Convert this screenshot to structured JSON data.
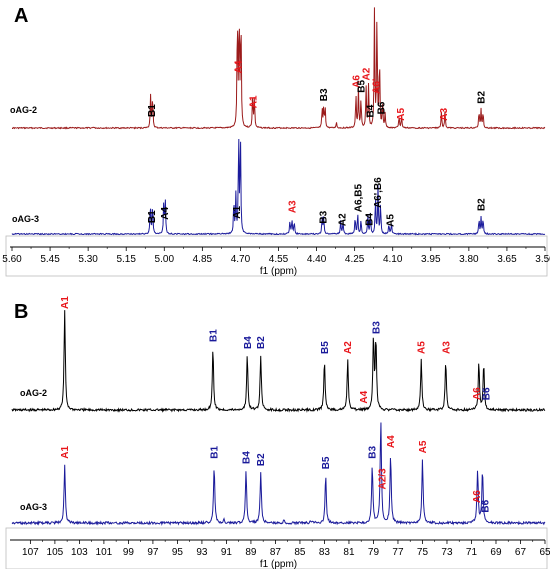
{
  "colors": {
    "black": "#000000",
    "red": "#e8161b",
    "blue": "#1a1a9a",
    "darkred": "#9b1b1b",
    "navy": "#1c1c9c",
    "axis": "#000000",
    "axisBox": "#bdbdbd"
  },
  "chart_data": [
    {
      "type": "line",
      "panel": "A",
      "xlabel": "f1 (ppm)",
      "x_reversed": true,
      "xlim": [
        5.6,
        3.5
      ],
      "x_ticks": [
        "5.60",
        "5.45",
        "5.30",
        "5.15",
        "5.00",
        "4.85",
        "4.70",
        "4.55",
        "4.40",
        "4.25",
        "4.10",
        "3.95",
        "3.80",
        "3.65",
        "3.50"
      ],
      "series": [
        {
          "name": "oAG-2",
          "color": "darkred",
          "peaks": [
            {
              "x": 5.28,
              "h": 0.01
            },
            {
              "x": 5.054,
              "h": 0.27
            },
            {
              "x": 5.046,
              "h": 0.27
            },
            {
              "x": 4.712,
              "h": 0.95
            },
            {
              "x": 4.705,
              "h": 0.95
            },
            {
              "x": 4.698,
              "h": 0.95
            },
            {
              "x": 4.652,
              "h": 0.27
            },
            {
              "x": 4.645,
              "h": 0.27
            },
            {
              "x": 4.378,
              "h": 0.16
            },
            {
              "x": 4.372,
              "h": 0.17
            },
            {
              "x": 4.366,
              "h": 0.16
            },
            {
              "x": 4.322,
              "h": 0.05
            },
            {
              "x": 4.245,
              "h": 0.28
            },
            {
              "x": 4.235,
              "h": 0.32
            },
            {
              "x": 4.225,
              "h": 0.24
            },
            {
              "x": 4.205,
              "h": 0.34
            },
            {
              "x": 4.195,
              "h": 0.36
            },
            {
              "x": 4.172,
              "h": 0.95
            },
            {
              "x": 4.162,
              "h": 0.95
            },
            {
              "x": 4.152,
              "h": 0.6
            },
            {
              "x": 4.14,
              "h": 0.2
            },
            {
              "x": 4.13,
              "h": 0.12
            },
            {
              "x": 4.075,
              "h": 0.1
            },
            {
              "x": 4.065,
              "h": 0.1
            },
            {
              "x": 3.908,
              "h": 0.14
            },
            {
              "x": 3.894,
              "h": 0.14
            },
            {
              "x": 3.76,
              "h": 0.14
            },
            {
              "x": 3.752,
              "h": 0.15
            },
            {
              "x": 3.744,
              "h": 0.14
            }
          ],
          "labels": [
            {
              "text": "B1",
              "x": 5.05,
              "color": "black"
            },
            {
              "text": "A4",
              "x": 4.71,
              "color": "red"
            },
            {
              "text": "A1",
              "x": 4.65,
              "color": "red"
            },
            {
              "text": "B3",
              "x": 4.372,
              "color": "black"
            },
            {
              "text": "A6",
              "x": 4.245,
              "color": "red"
            },
            {
              "text": "B5",
              "x": 4.225,
              "color": "black"
            },
            {
              "text": "A2",
              "x": 4.205,
              "color": "red"
            },
            {
              "text": "B4",
              "x": 4.19,
              "color": "black"
            },
            {
              "text": "A6'",
              "x": 4.165,
              "color": "red"
            },
            {
              "text": "B6",
              "x": 4.147,
              "color": "black"
            },
            {
              "text": "A5",
              "x": 4.07,
              "color": "red"
            },
            {
              "text": "A3",
              "x": 3.9,
              "color": "red"
            },
            {
              "text": "B2",
              "x": 3.752,
              "color": "black"
            }
          ]
        },
        {
          "name": "oAG-3",
          "color": "navy",
          "peaks": [
            {
              "x": 5.055,
              "h": 0.3
            },
            {
              "x": 5.046,
              "h": 0.3
            },
            {
              "x": 5.002,
              "h": 0.32
            },
            {
              "x": 4.996,
              "h": 0.32
            },
            {
              "x": 4.726,
              "h": 0.33
            },
            {
              "x": 4.718,
              "h": 0.36
            },
            {
              "x": 4.707,
              "h": 0.95
            },
            {
              "x": 4.7,
              "h": 0.95
            },
            {
              "x": 4.505,
              "h": 0.12
            },
            {
              "x": 4.497,
              "h": 0.14
            },
            {
              "x": 4.488,
              "h": 0.12
            },
            {
              "x": 4.378,
              "h": 0.17
            },
            {
              "x": 4.372,
              "h": 0.17
            },
            {
              "x": 4.305,
              "h": 0.12
            },
            {
              "x": 4.296,
              "h": 0.12
            },
            {
              "x": 4.248,
              "h": 0.17
            },
            {
              "x": 4.238,
              "h": 0.2
            },
            {
              "x": 4.225,
              "h": 0.14
            },
            {
              "x": 4.198,
              "h": 0.18
            },
            {
              "x": 4.188,
              "h": 0.2
            },
            {
              "x": 4.168,
              "h": 0.35
            },
            {
              "x": 4.158,
              "h": 0.45
            },
            {
              "x": 4.148,
              "h": 0.3
            },
            {
              "x": 4.115,
              "h": 0.1
            },
            {
              "x": 4.105,
              "h": 0.1
            },
            {
              "x": 3.76,
              "h": 0.15
            },
            {
              "x": 3.752,
              "h": 0.16
            },
            {
              "x": 3.744,
              "h": 0.15
            }
          ],
          "labels": [
            {
              "text": "B1",
              "x": 5.05,
              "color": "black"
            },
            {
              "text": "A4",
              "x": 4.999,
              "color": "black"
            },
            {
              "text": "A1",
              "x": 4.715,
              "color": "black"
            },
            {
              "text": "A3",
              "x": 4.497,
              "color": "red"
            },
            {
              "text": "B3",
              "x": 4.375,
              "color": "black"
            },
            {
              "text": "A2",
              "x": 4.3,
              "color": "black"
            },
            {
              "text": "A6,B5",
              "x": 4.237,
              "color": "black"
            },
            {
              "text": "B4",
              "x": 4.193,
              "color": "black"
            },
            {
              "text": "A6',B6",
              "x": 4.16,
              "color": "black"
            },
            {
              "text": "A5",
              "x": 4.11,
              "color": "black"
            },
            {
              "text": "B2",
              "x": 3.752,
              "color": "black"
            }
          ]
        }
      ],
      "panel_label": "A"
    },
    {
      "type": "line",
      "panel": "B",
      "xlabel": "f1 (ppm)",
      "x_reversed": true,
      "xlim": [
        108.5,
        65
      ],
      "x_ticks": [
        "107",
        "105",
        "103",
        "101",
        "99",
        "97",
        "95",
        "93",
        "91",
        "89",
        "87",
        "85",
        "83",
        "81",
        "79",
        "77",
        "75",
        "73",
        "71",
        "69",
        "67",
        "65"
      ],
      "series": [
        {
          "name": "oAG-2",
          "color": "black",
          "peaks": [
            {
              "x": 104.2,
              "h": 1.0
            },
            {
              "x": 92.1,
              "h": 0.62
            },
            {
              "x": 89.3,
              "h": 0.55
            },
            {
              "x": 88.2,
              "h": 0.55
            },
            {
              "x": 83.0,
              "h": 0.5
            },
            {
              "x": 81.1,
              "h": 0.5
            },
            {
              "x": 79.0,
              "h": 0.72
            },
            {
              "x": 78.8,
              "h": 0.7
            },
            {
              "x": 75.1,
              "h": 0.5
            },
            {
              "x": 73.1,
              "h": 0.5
            },
            {
              "x": 70.4,
              "h": 0.48
            },
            {
              "x": 70.0,
              "h": 0.46
            }
          ],
          "labels": [
            {
              "text": "A1",
              "x": 104.2,
              "color": "red"
            },
            {
              "text": "B1",
              "x": 92.1,
              "color": "blue"
            },
            {
              "text": "B4",
              "x": 89.3,
              "color": "blue"
            },
            {
              "text": "B2",
              "x": 88.2,
              "color": "blue"
            },
            {
              "text": "B5",
              "x": 83.0,
              "color": "blue"
            },
            {
              "text": "A2",
              "x": 81.1,
              "color": "red"
            },
            {
              "text": "A4",
              "x": 79.8,
              "color": "red"
            },
            {
              "text": "B3",
              "x": 78.8,
              "color": "blue"
            },
            {
              "text": "A5",
              "x": 75.1,
              "color": "red"
            },
            {
              "text": "A3",
              "x": 73.1,
              "color": "red"
            },
            {
              "text": "A6",
              "x": 70.6,
              "color": "red"
            },
            {
              "text": "B6",
              "x": 69.8,
              "color": "blue"
            }
          ]
        },
        {
          "name": "oAG-3",
          "color": "blue",
          "peaks": [
            {
              "x": 104.2,
              "h": 0.55
            },
            {
              "x": 92.0,
              "h": 0.55
            },
            {
              "x": 89.4,
              "h": 0.5
            },
            {
              "x": 88.2,
              "h": 0.48
            },
            {
              "x": 82.9,
              "h": 0.45
            },
            {
              "x": 79.1,
              "h": 0.55
            },
            {
              "x": 78.4,
              "h": 0.98
            },
            {
              "x": 77.6,
              "h": 0.65
            },
            {
              "x": 75.0,
              "h": 0.6
            },
            {
              "x": 70.5,
              "h": 0.5
            },
            {
              "x": 70.1,
              "h": 0.5
            },
            {
              "x": 91.2,
              "h": 0.03
            },
            {
              "x": 86.3,
              "h": 0.02
            },
            {
              "x": 84.1,
              "h": 0.02
            }
          ],
          "labels": [
            {
              "text": "A1",
              "x": 104.2,
              "color": "red"
            },
            {
              "text": "B1",
              "x": 92.0,
              "color": "blue"
            },
            {
              "text": "B4",
              "x": 89.4,
              "color": "blue"
            },
            {
              "text": "B2",
              "x": 88.2,
              "color": "blue"
            },
            {
              "text": "B5",
              "x": 82.9,
              "color": "blue"
            },
            {
              "text": "B3",
              "x": 79.1,
              "color": "blue"
            },
            {
              "text": "A2/3",
              "x": 78.3,
              "color": "red"
            },
            {
              "text": "A4",
              "x": 77.6,
              "color": "red"
            },
            {
              "text": "A5",
              "x": 75.0,
              "color": "red"
            },
            {
              "text": "A6",
              "x": 70.6,
              "color": "red"
            },
            {
              "text": "B6",
              "x": 69.9,
              "color": "blue"
            }
          ]
        }
      ],
      "panel_label": "B"
    }
  ]
}
